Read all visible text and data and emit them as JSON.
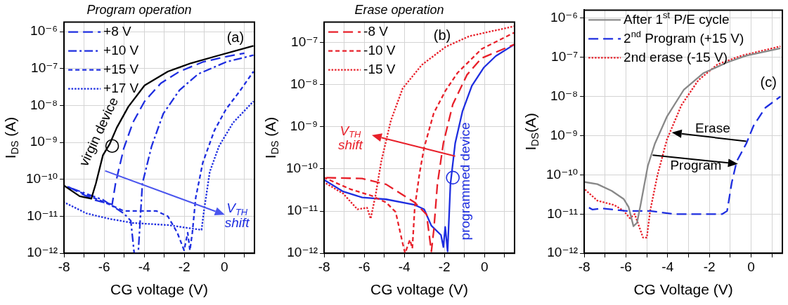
{
  "chart_data": [
    {
      "type": "line",
      "title": "Program operation",
      "xlabel": "CG voltage (V)",
      "ylabel": "I$_{DS}$ (A)",
      "log": "y",
      "grid": true,
      "legend": "top left",
      "xlim": [
        -8,
        1.5
      ],
      "ylim": [
        1e-12,
        1.8e-06
      ],
      "xticks": [
        -8,
        {
          "value": -7,
          "label": null
        },
        -6,
        {
          "value": -5,
          "label": null
        },
        -4,
        {
          "value": -3,
          "label": null
        },
        -2,
        {
          "value": -1,
          "label": null
        },
        0,
        {
          "value": 1,
          "label": null
        }
      ],
      "yticks": [
        {
          "value": 1e-12,
          "label": "10⁻¹²"
        },
        {
          "value": 1e-11,
          "label": "10⁻¹¹"
        },
        {
          "value": 1e-10,
          "label": "10⁻¹⁰"
        },
        {
          "value": 1e-09,
          "label": "10⁻⁹"
        },
        {
          "value": 1e-08,
          "label": "10⁻⁸"
        },
        {
          "value": 1e-07,
          "label": "10⁻⁷"
        },
        {
          "value": 1e-06,
          "label": "10⁻⁶"
        }
      ],
      "annotations": [
        "(a)",
        "virgin device",
        "V$_{TH}$\nshift"
      ],
      "series": [
        {
          "color": "#000000",
          "line_style": "solid",
          "x": [
            -8,
            -7.22,
            -6.64,
            -6.41,
            -6.06,
            -5.72,
            -5.37,
            -4.79,
            -3.98,
            -2.82,
            -1.66,
            -0.5,
            1.45
          ],
          "values": [
            6.8e-11,
            3.5e-11,
            3e-11,
            7.8e-11,
            4.5e-10,
            9.1e-10,
            2.5e-09,
            9.3e-09,
            3.5e-08,
            8.3e-08,
            1.4e-07,
            2.1e-07,
            4.1e-07
          ]
        },
        {
          "name": "+8 V",
          "color": "#1e2ee0",
          "line_style": "dashed",
          "x": [
            -8,
            -6.53,
            -5.6,
            -5.43,
            -5.02,
            -4.56,
            -3.98,
            -3.17,
            -2.24,
            -1.08,
            0.08,
            1.0
          ],
          "values": [
            7.2e-11,
            2.8e-11,
            2.1e-11,
            7.8e-11,
            6.9e-10,
            3.5e-09,
            1.3e-08,
            4e-08,
            8.3e-08,
            1.5e-07,
            2.1e-07,
            2.6e-07
          ]
        },
        {
          "name": "+10 V",
          "color": "#1e2ee0",
          "line_style": "dashdot",
          "x": [
            -8,
            -6.06,
            -5.02,
            -4.67,
            -4.5,
            -4.3,
            -4.09,
            -3.63,
            -3.05,
            -2.24,
            -1.31,
            0.08,
            1.45
          ],
          "values": [
            6.8e-11,
            2.8e-11,
            1.2e-11,
            7.6e-12,
            1e-12,
            1e-12,
            7.8e-11,
            7.9e-10,
            6e-09,
            2.6e-08,
            7.1e-08,
            1.5e-07,
            2.3e-07
          ]
        },
        {
          "name": "+15 V",
          "color": "#1e2ee0",
          "line_style": "dashed",
          "x": [
            -8,
            -6.06,
            -5.02,
            -3.4,
            -2.82,
            -2.35,
            -2.01,
            -1.83,
            -1.72,
            -1.6,
            -1.43,
            -1.08,
            -0.5,
            0.08,
            0.78,
            1.45
          ],
          "values": [
            6.8e-11,
            2.5e-11,
            1.4e-11,
            1.4e-11,
            1e-11,
            3.6e-12,
            1.2e-12,
            3.6e-12,
            1.2e-12,
            3.6e-12,
            3.2e-11,
            2.8e-10,
            2.1e-09,
            7.9e-09,
            2.5e-08,
            8.3e-08
          ]
        },
        {
          "name": "+17 V",
          "color": "#1e2ee0",
          "line_style": "dotted",
          "x": [
            -8,
            -6.88,
            -5.72,
            -4.56,
            -2.82,
            -1.66,
            -1.14,
            -1.02,
            -0.73,
            -0.27,
            0.43,
            1.45
          ],
          "values": [
            2.4e-11,
            1.2e-11,
            8.5e-12,
            6.6e-12,
            5.8e-12,
            4.7e-12,
            4.3e-12,
            1.4e-11,
            1.6e-10,
            7.9e-10,
            3.4e-09,
            1.3e-08
          ]
        }
      ]
    },
    {
      "type": "line",
      "title": "Erase operation",
      "xlabel": "CG voltage (V)",
      "ylabel": "I$_{DS}$ (A)",
      "log": "y",
      "grid": true,
      "legend": "top left",
      "xlim": [
        -8,
        1.5
      ],
      "ylim": [
        1e-12,
        3e-07
      ],
      "xticks": [
        -8,
        {
          "value": -7,
          "label": null
        },
        -6,
        {
          "value": -5,
          "label": null
        },
        -4,
        {
          "value": -3,
          "label": null
        },
        -2,
        {
          "value": -1,
          "label": null
        },
        0,
        {
          "value": 1,
          "label": null
        }
      ],
      "yticks": [
        {
          "value": 1e-12,
          "label": "10⁻¹²"
        },
        {
          "value": 1e-11,
          "label": "10⁻¹¹"
        },
        {
          "value": 1e-10,
          "label": "10⁻¹⁰"
        },
        {
          "value": 1e-09,
          "label": "10⁻⁹"
        },
        {
          "value": 1e-08,
          "label": "10⁻⁸"
        },
        {
          "value": 1e-07,
          "label": "10⁻⁷"
        }
      ],
      "annotations": [
        "(b)",
        "V$_{TH}$\nshift",
        "programmed device"
      ],
      "series": [
        {
          "name": "-8 V",
          "color": "#e8202a",
          "line_style": "dashed",
          "x": [
            -8,
            -6.1,
            -4.91,
            -3.48,
            -2.89,
            -2.65,
            -2.53,
            -2.35,
            -2.05,
            -1.58,
            -0.87,
            -0.15,
            1.49
          ],
          "values": [
            6.2e-11,
            5.9e-11,
            4.3e-11,
            1.6e-11,
            8.3e-12,
            1.1e-12,
            3.5e-12,
            4.3e-11,
            4.1e-10,
            3.4e-09,
            1.7e-08,
            4.2e-08,
            8.9e-08
          ]
        },
        {
          "name": "-10 V",
          "color": "#e8202a",
          "line_style": "dashed",
          "x": [
            -8,
            -6.69,
            -5.62,
            -4.91,
            -4.43,
            -4.08,
            -3.96,
            -3.72,
            -3.6,
            -3.48,
            -3.24,
            -3.01,
            -2.53,
            -1.94,
            -1.34,
            -0.15,
            1.49
          ],
          "values": [
            6.2e-11,
            3.3e-11,
            2.3e-11,
            1.6e-11,
            9.5e-12,
            1.7e-12,
            1e-12,
            2.1e-12,
            1.3e-12,
            1.2e-11,
            7.9e-11,
            3.2e-10,
            2.1e-09,
            7.2e-09,
            1.9e-08,
            6.9e-08,
            1.7e-07
          ]
        },
        {
          "name": "-15 V",
          "color": "#e8202a",
          "line_style": "dotted",
          "x": [
            -8,
            -7.05,
            -6.34,
            -5.86,
            -5.68,
            -5.44,
            -5.15,
            -4.67,
            -4.08,
            -3.13,
            -1.94,
            -0.75,
            1.49
          ],
          "values": [
            4.8e-11,
            2.6e-11,
            1.1e-11,
            1.2e-11,
            6.6e-12,
            2.3e-11,
            1.5e-10,
            1.4e-09,
            8.1e-09,
            2.9e-08,
            7.8e-08,
            1.4e-07,
            2.4e-07
          ]
        },
        {
          "color": "#1e2ee0",
          "line_style": "solid",
          "x": [
            -8,
            -7.05,
            -6.1,
            -4.91,
            -3.48,
            -3.01,
            -2.65,
            -2.17,
            -2.05,
            -1.96,
            -1.84,
            -1.7,
            -1.46,
            -1.1,
            -0.63,
            -0.04,
            0.56,
            1.49
          ],
          "values": [
            5.5e-11,
            2.9e-11,
            2.1e-11,
            1.9e-11,
            1.4e-11,
            1.1e-11,
            4.5e-12,
            2.7e-12,
            1.4e-12,
            4.2e-12,
            1.1e-12,
            4.3e-11,
            4.1e-10,
            2.3e-09,
            9.3e-09,
            2.5e-08,
            4.7e-08,
            8.9e-08
          ]
        }
      ]
    },
    {
      "type": "line",
      "xlabel": "CG Voltage (V)",
      "ylabel": "I$_{DS}$(A)",
      "log": "y",
      "grid": true,
      "legend": "top left",
      "xlim": [
        -8,
        1.5
      ],
      "ylim": [
        1e-12,
        1.6e-06
      ],
      "xticks": [
        -8,
        {
          "value": -7,
          "label": null
        },
        -6,
        {
          "value": -5,
          "label": null
        },
        -4,
        {
          "value": -3,
          "label": null
        },
        -2,
        {
          "value": -1,
          "label": null
        },
        0,
        {
          "value": 1,
          "label": null
        }
      ],
      "yticks": [
        {
          "value": 1e-12,
          "label": "10⁻¹²"
        },
        {
          "value": 1e-11,
          "label": "10⁻¹¹"
        },
        {
          "value": 1e-10,
          "label": "10⁻¹⁰"
        },
        {
          "value": 1e-09,
          "label": "10⁻⁹"
        },
        {
          "value": 1e-08,
          "label": "10⁻⁸"
        },
        {
          "value": 1e-07,
          "label": "10⁻⁷"
        },
        {
          "value": 1e-06,
          "label": "10⁻⁶"
        }
      ],
      "annotations": [
        "(c)",
        "Erase",
        "Program"
      ],
      "series": [
        {
          "name": "After 1$^{st}$ P/E cycle",
          "color": "#888888",
          "line_style": "solid",
          "x": [
            -8,
            -7.37,
            -6.68,
            -6.1,
            -5.87,
            -5.64,
            -5.47,
            -5.3,
            -4.95,
            -4.61,
            -4.03,
            -3.22,
            -2.3,
            -1.15,
            -0.23,
            1.41
          ],
          "values": [
            6.6e-11,
            5.8e-11,
            3.9e-11,
            2.4e-11,
            1.5e-11,
            4.9e-12,
            6e-12,
            1.7e-11,
            1.7e-10,
            6.3e-10,
            3.1e-09,
            1.5e-08,
            3.9e-08,
            7.4e-08,
            1.1e-07,
            1.7e-07
          ]
        },
        {
          "name": "2$^{nd}$ Program (+15 V)",
          "color": "#1e2ee0",
          "line_style": "dashed",
          "x": [
            -8,
            -7.6,
            -7.14,
            -5.99,
            -4.84,
            -3.68,
            -1.38,
            -1.15,
            -0.92,
            -0.69,
            -0.23,
            0.12,
            0.69,
            1.41
          ],
          "values": [
            1.7e-11,
            1.3e-11,
            1.4e-11,
            1.2e-11,
            1.2e-11,
            1e-11,
            1e-11,
            1.2e-11,
            6.6e-11,
            2.2e-10,
            6.3e-10,
            1.8e-09,
            5.2e-09,
            1e-08
          ]
        },
        {
          "name": "2nd erase (-15 V)",
          "color": "#e8202a",
          "line_style": "dotted",
          "x": [
            -8,
            -7.37,
            -6.56,
            -6.1,
            -5.81,
            -5.58,
            -5.18,
            -5.0,
            -4.84,
            -4.49,
            -4.03,
            -3.34,
            -2.53,
            -1.61,
            -0.46,
            1.41
          ],
          "values": [
            4.4e-11,
            2.2e-11,
            1.7e-11,
            1.2e-11,
            7.8e-12,
            1e-11,
            2.5e-12,
            2.5e-12,
            1.2e-11,
            9.8e-11,
            8.1e-10,
            6e-09,
            2.6e-08,
            6.6e-08,
            1.1e-07,
            1.9e-07
          ]
        }
      ]
    }
  ]
}
